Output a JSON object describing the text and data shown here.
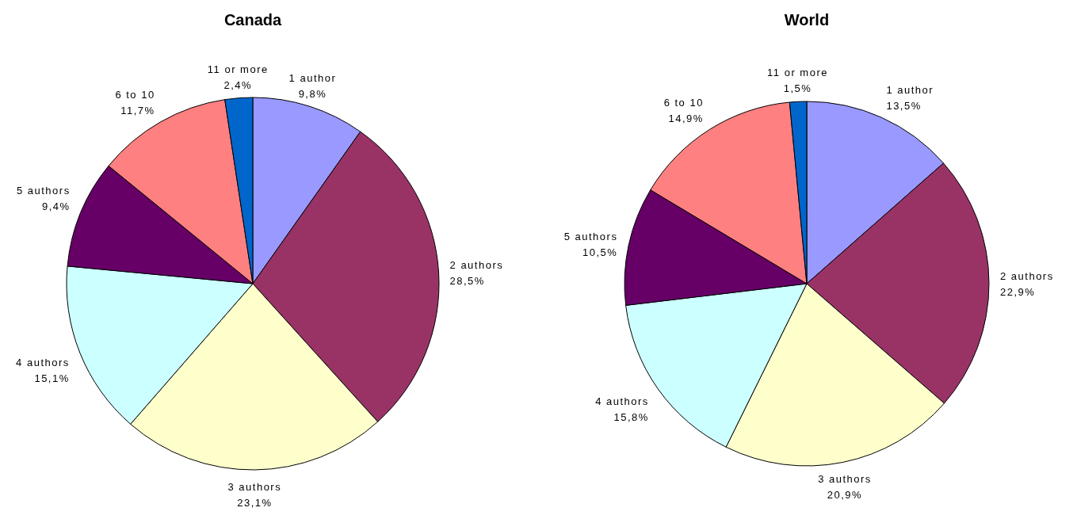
{
  "chart_data": [
    {
      "type": "pie",
      "title": "Canada",
      "categories": [
        "1 author",
        "2 authors",
        "3 authors",
        "4 authors",
        "5 authors",
        "6 to 10",
        "11 or more"
      ],
      "values": [
        9.8,
        28.5,
        23.1,
        15.1,
        9.4,
        11.7,
        2.4
      ],
      "value_labels": [
        "9,8%",
        "28,5%",
        "23,1%",
        "15,1%",
        "9,4%",
        "11,7%",
        "2,4%"
      ],
      "colors": [
        "#9999ff",
        "#993366",
        "#ffffcc",
        "#ccffff",
        "#660066",
        "#ff8080",
        "#0066cc"
      ]
    },
    {
      "type": "pie",
      "title": "World",
      "categories": [
        "1 author",
        "2 authors",
        "3 authors",
        "4 authors",
        "5 authors",
        "6 to 10",
        "11 or more"
      ],
      "values": [
        13.5,
        22.9,
        20.9,
        15.8,
        10.5,
        14.9,
        1.5
      ],
      "value_labels": [
        "13,5%",
        "22,9%",
        "20,9%",
        "15,8%",
        "10,5%",
        "14,9%",
        "1,5%"
      ],
      "colors": [
        "#9999ff",
        "#993366",
        "#ffffcc",
        "#ccffff",
        "#660066",
        "#ff8080",
        "#0066cc"
      ]
    }
  ]
}
